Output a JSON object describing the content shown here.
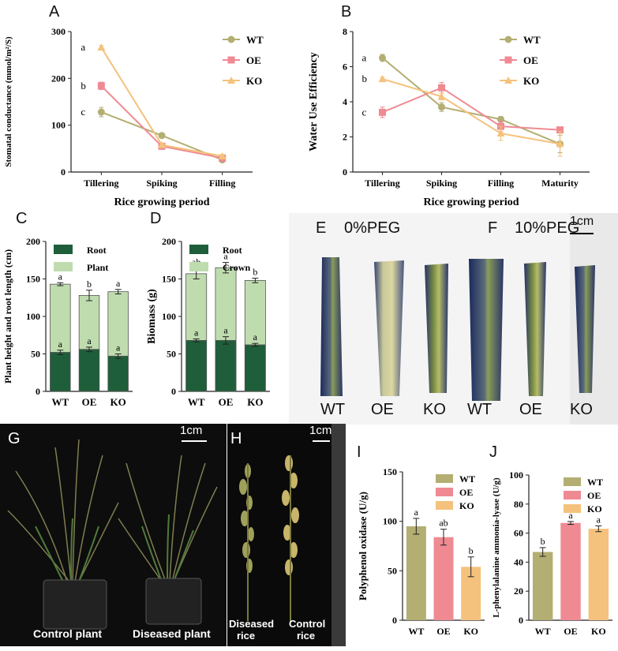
{
  "colors": {
    "wt": "#b3ae72",
    "oe": "#ef8a93",
    "ko": "#f4c27c",
    "root": "#1f5e3a",
    "plant": "#bfdcae",
    "bg_dark": "#0c0c0c",
    "leaf_bg": "#efefef"
  },
  "panels": {
    "A": {
      "label": "A"
    },
    "B": {
      "label": "B"
    },
    "C": {
      "label": "C"
    },
    "D": {
      "label": "D"
    },
    "E": {
      "label": "E",
      "title": "0%PEG"
    },
    "F": {
      "label": "F",
      "title": "10%PEG",
      "scale": "1cm"
    },
    "EF_genotypes": [
      "WT",
      "OE",
      "KO",
      "WT",
      "OE",
      "KO"
    ],
    "G": {
      "label": "G",
      "scale": "1cm",
      "caption_left": "Control plant",
      "caption_right": "Diseased plant"
    },
    "H": {
      "label": "H",
      "scale": "1cm",
      "caption_left_1": "Diseased",
      "caption_left_2": "rice",
      "caption_right_1": "Control",
      "caption_right_2": "rice"
    },
    "I": {
      "label": "I"
    },
    "J": {
      "label": "J"
    }
  },
  "chart_data": [
    {
      "id": "A",
      "type": "line",
      "xlabel": "Rice growing period",
      "ylabel": "Stomatal conductance (mmol/m²/S)",
      "categories": [
        "Tillering",
        "Spiking",
        "Filling"
      ],
      "ylim": [
        0,
        300
      ],
      "yticks": [
        0,
        100,
        200,
        300
      ],
      "series": [
        {
          "name": "WT",
          "values": [
            128,
            78,
            26
          ],
          "errors": [
            10,
            4,
            3
          ]
        },
        {
          "name": "OE",
          "values": [
            184,
            55,
            30
          ],
          "errors": [
            8,
            5,
            3
          ]
        },
        {
          "name": "KO",
          "values": [
            266,
            58,
            34
          ],
          "errors": [
            4,
            4,
            3
          ]
        }
      ],
      "annotations": [
        {
          "text": "a",
          "series": "KO",
          "index": 0
        },
        {
          "text": "b",
          "series": "OE",
          "index": 0
        },
        {
          "text": "c",
          "series": "WT",
          "index": 0
        }
      ]
    },
    {
      "id": "B",
      "type": "line",
      "xlabel": "Rice growing period",
      "ylabel": "Water Use Efficiency",
      "categories": [
        "Tillering",
        "Spiking",
        "Filling",
        "Maturity"
      ],
      "ylim": [
        0,
        8
      ],
      "yticks": [
        0,
        2,
        4,
        6,
        8
      ],
      "series": [
        {
          "name": "WT",
          "values": [
            6.5,
            3.7,
            3.0,
            1.6
          ],
          "errors": [
            0.2,
            0.25,
            0.15,
            0.5
          ]
        },
        {
          "name": "OE",
          "values": [
            3.4,
            4.8,
            2.6,
            2.4
          ],
          "errors": [
            0.3,
            0.3,
            0.3,
            0.15
          ]
        },
        {
          "name": "KO",
          "values": [
            5.3,
            4.3,
            2.2,
            1.6
          ],
          "errors": [
            0.1,
            0.2,
            0.4,
            0.7
          ]
        }
      ],
      "annotations": [
        {
          "text": "a",
          "series": "WT",
          "index": 0
        },
        {
          "text": "b",
          "series": "KO",
          "index": 0
        },
        {
          "text": "c",
          "series": "OE",
          "index": 0
        }
      ]
    },
    {
      "id": "C",
      "type": "bar",
      "ylabel": "Plant height and root length (cm)",
      "categories": [
        "WT",
        "OE",
        "KO"
      ],
      "ylim": [
        0,
        200
      ],
      "yticks": [
        0,
        50,
        100,
        150,
        200
      ],
      "series": [
        {
          "name": "Root",
          "values": [
            52,
            56,
            47
          ],
          "errors": [
            3,
            3,
            3
          ]
        },
        {
          "name": "Plant",
          "values": [
            143,
            128,
            133
          ],
          "errors": [
            2,
            7,
            3
          ]
        }
      ],
      "letters_top": [
        "a",
        "b",
        "a"
      ],
      "letters_bottom": [
        "a",
        "a",
        "a"
      ]
    },
    {
      "id": "D",
      "type": "bar",
      "ylabel": "Biomass (g)",
      "categories": [
        "WT",
        "OE",
        "KO"
      ],
      "ylim": [
        0,
        200
      ],
      "yticks": [
        0,
        50,
        100,
        150,
        200
      ],
      "series": [
        {
          "name": "Root",
          "values": [
            68,
            68,
            62
          ],
          "errors": [
            2,
            5,
            2
          ]
        },
        {
          "name": "Crown",
          "values": [
            157,
            165,
            148
          ],
          "errors": [
            7,
            7,
            3
          ]
        }
      ],
      "letters_top": [
        "ab",
        "a",
        "b"
      ],
      "letters_bottom": [
        "a",
        "a",
        "a"
      ]
    },
    {
      "id": "I",
      "type": "bar",
      "ylabel": "Polyphenol oxidase (U/g)",
      "categories": [
        "WT",
        "OE",
        "KO"
      ],
      "ylim": [
        0,
        150
      ],
      "yticks": [
        0,
        50,
        100,
        150
      ],
      "values": [
        95,
        84,
        54
      ],
      "errors": [
        8,
        8,
        10
      ],
      "legend": [
        "WT",
        "OE",
        "KO"
      ],
      "letters": [
        "a",
        "ab",
        "b"
      ]
    },
    {
      "id": "J",
      "type": "bar",
      "ylabel": "L-phenylalanine ammonia-lyase (U/g)",
      "categories": [
        "WT",
        "OE",
        "KO"
      ],
      "ylim": [
        0,
        100
      ],
      "yticks": [
        0,
        20,
        40,
        60,
        80,
        100
      ],
      "values": [
        47,
        67,
        63
      ],
      "errors": [
        3,
        1,
        2
      ],
      "legend": [
        "WT",
        "OE",
        "KO"
      ],
      "letters": [
        "b",
        "a",
        "a"
      ]
    }
  ]
}
